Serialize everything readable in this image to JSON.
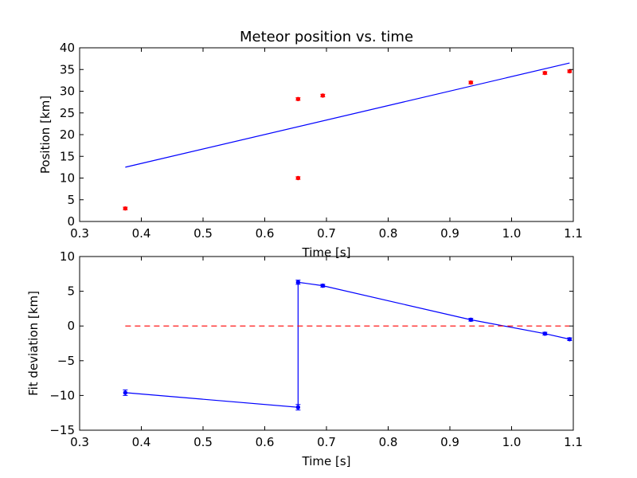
{
  "chart_data": [
    {
      "type": "scatter",
      "title": "Meteor position vs. time",
      "xlabel": "Time [s]",
      "ylabel": "Position [km]",
      "xlim": [
        0.3,
        1.1
      ],
      "ylim": [
        0,
        40
      ],
      "xticks": [
        "0.3",
        "0.4",
        "0.5",
        "0.6",
        "0.7",
        "0.8",
        "0.9",
        "1.0",
        "1.1"
      ],
      "yticks": [
        "0",
        "5",
        "10",
        "15",
        "20",
        "25",
        "30",
        "35",
        "40"
      ],
      "grid": false,
      "series": [
        {
          "kind": "errorbar-points",
          "color": "#ff0000",
          "x": [
            0.374,
            0.654,
            0.654,
            0.694,
            0.934,
            1.054,
            1.094
          ],
          "y": [
            3.0,
            28.2,
            10.0,
            29.0,
            32.0,
            34.2,
            34.6
          ],
          "yerr": [
            0.3,
            0.3,
            0.3,
            0.3,
            0.3,
            0.3,
            0.3
          ]
        },
        {
          "kind": "line",
          "color": "#0000ff",
          "x": [
            0.374,
            1.094
          ],
          "y": [
            12.5,
            36.5
          ]
        }
      ]
    },
    {
      "type": "line",
      "title": "",
      "xlabel": "Time [s]",
      "ylabel": "Fit deviation [km]",
      "xlim": [
        0.3,
        1.1
      ],
      "ylim": [
        -15,
        10
      ],
      "xticks": [
        "0.3",
        "0.4",
        "0.5",
        "0.6",
        "0.7",
        "0.8",
        "0.9",
        "1.0",
        "1.1"
      ],
      "yticks": [
        "−15",
        "−10",
        "−5",
        "0",
        "5",
        "10"
      ],
      "yticks_values": [
        -15,
        -10,
        -5,
        0,
        5,
        10
      ],
      "grid": false,
      "series": [
        {
          "kind": "errorbar-line",
          "color": "#0000ff",
          "x": [
            0.374,
            0.654,
            0.654,
            0.694,
            0.934,
            1.054,
            1.094
          ],
          "y": [
            -9.6,
            -11.7,
            6.3,
            5.8,
            0.9,
            -1.1,
            -1.9
          ],
          "yerr": [
            0.4,
            0.4,
            0.3,
            0.2,
            0.2,
            0.2,
            0.2
          ]
        },
        {
          "kind": "dashed-line",
          "color": "#ff0000",
          "x": [
            0.374,
            1.094
          ],
          "y": [
            0,
            0
          ]
        }
      ]
    }
  ]
}
